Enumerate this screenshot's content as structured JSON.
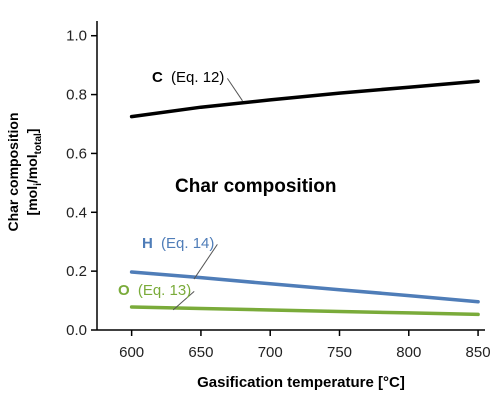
{
  "chart_data": {
    "type": "line",
    "xlabel": "Gasification temperature [°C]",
    "ylabel": {
      "line1": "Char composition",
      "line2_open": "[mol",
      "line2_sub1": "i",
      "line2_mid": "/mol",
      "line2_sub2": "total",
      "line2_close": "]"
    },
    "annotation": "Char composition",
    "xlim": [
      575,
      855
    ],
    "ylim": [
      0,
      1.05
    ],
    "x_ticks": [
      600,
      650,
      700,
      750,
      800,
      850
    ],
    "y_ticks": [
      0.0,
      0.2,
      0.4,
      0.6,
      0.8,
      1.0
    ],
    "y_tick_labels": [
      "0.0",
      "0.2",
      "0.4",
      "0.6",
      "0.8",
      "1.0"
    ],
    "grid": false,
    "series": [
      {
        "name": "C",
        "eq": "(Eq. 12)",
        "color": "#000000",
        "x": [
          600,
          650,
          700,
          750,
          800,
          850
        ],
        "y": [
          0.725,
          0.757,
          0.782,
          0.805,
          0.825,
          0.845
        ]
      },
      {
        "name": "H",
        "eq": "(Eq. 14)",
        "color": "#4f7db8",
        "x": [
          600,
          650,
          700,
          750,
          800,
          850
        ],
        "y": [
          0.197,
          0.178,
          0.157,
          0.137,
          0.117,
          0.096
        ]
      },
      {
        "name": "O",
        "eq": "(Eq. 13)",
        "color": "#7aab3a",
        "x": [
          600,
          650,
          700,
          750,
          800,
          850
        ],
        "y": [
          0.078,
          0.073,
          0.068,
          0.063,
          0.058,
          0.053
        ]
      }
    ]
  }
}
